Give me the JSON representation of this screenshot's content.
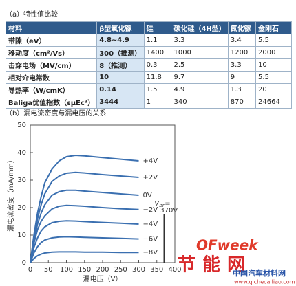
{
  "section_a": {
    "title": "（a）特性值比较"
  },
  "table": {
    "header": [
      "材料",
      "β型氧化镓",
      "硅",
      "碳化硅（4H型）",
      "氮化镓",
      "金刚石"
    ],
    "rows": [
      [
        "带隙（eV）",
        "4.8~4.9",
        "1.1",
        "3.3",
        "3.4",
        "5.5"
      ],
      [
        "移动度（cm²/Vs）",
        "300（推测）",
        "1400",
        "1000",
        "1200",
        "2000"
      ],
      [
        "击穿电场（MV/cm）",
        "8（推测）",
        "0.3",
        "2.5",
        "3.3",
        "10"
      ],
      [
        "相对介电常数",
        "10",
        "11.8",
        "9.7",
        "9",
        "5.5"
      ],
      [
        "导热率（W/cmK）",
        "0.14",
        "1.5",
        "4.9",
        "1.3",
        "20"
      ],
      [
        "Baliga优值指数（εμEc³）",
        "3444",
        "1",
        "340",
        "870",
        "24664"
      ]
    ]
  },
  "section_b": {
    "title": "（b）漏电流密度与漏电压的关系"
  },
  "chart_data": {
    "type": "line",
    "xlabel": "漏电压（V）",
    "ylabel": "漏电流密度（mA/mm）",
    "xlim": [
      0,
      400
    ],
    "xticks": [
      0,
      50,
      100,
      150,
      200,
      250,
      300,
      350,
      400
    ],
    "ylim": [
      0,
      50
    ],
    "yticks": [
      0,
      10,
      20,
      30,
      40,
      50
    ],
    "color": "#3a6fb0",
    "x": [
      0,
      10,
      20,
      30,
      40,
      60,
      80,
      100,
      125,
      150,
      200,
      250,
      300
    ],
    "series": [
      {
        "name": "+4V",
        "values": [
          0,
          10,
          18,
          24,
          29,
          34,
          37,
          38.5,
          39,
          38.8,
          38.2,
          37.6,
          37
        ]
      },
      {
        "name": "+2V",
        "values": [
          0,
          9,
          16,
          21,
          25,
          29.5,
          31.5,
          32.5,
          32.8,
          32.6,
          32,
          31.5,
          31
        ]
      },
      {
        "name": "0V",
        "values": [
          0,
          8,
          14,
          18,
          21,
          24.5,
          25.8,
          26.3,
          26.3,
          26,
          25.5,
          25,
          24.5
        ]
      },
      {
        "name": "−2V",
        "values": [
          0,
          7,
          12,
          15,
          17,
          19.5,
          20.5,
          20.8,
          20.7,
          20.5,
          20,
          19.6,
          19.3
        ]
      },
      {
        "name": "−4V",
        "values": [
          0,
          5.5,
          9,
          11.5,
          13,
          14.5,
          15,
          15.2,
          15.1,
          14.9,
          14.6,
          14.3,
          14
        ]
      },
      {
        "name": "−6V",
        "values": [
          0,
          3.5,
          5.8,
          7.3,
          8.2,
          9,
          9.3,
          9.4,
          9.3,
          9.2,
          9,
          8.8,
          8.6
        ]
      },
      {
        "name": "−8V",
        "values": [
          0,
          1.5,
          2.5,
          3.1,
          3.5,
          3.8,
          3.9,
          3.9,
          3.9,
          3.8,
          3.8,
          3.7,
          3.7
        ]
      }
    ],
    "annotation": {
      "symbol": "V",
      "subscript": "br",
      "sign": "=",
      "breakdown": {
        "value": 370,
        "label": "370V"
      }
    }
  },
  "watermark": {
    "brand": "OFweek",
    "name": "节能网",
    "site": "中国汽车材料网",
    "url": "www.qichecailiao.com"
  }
}
